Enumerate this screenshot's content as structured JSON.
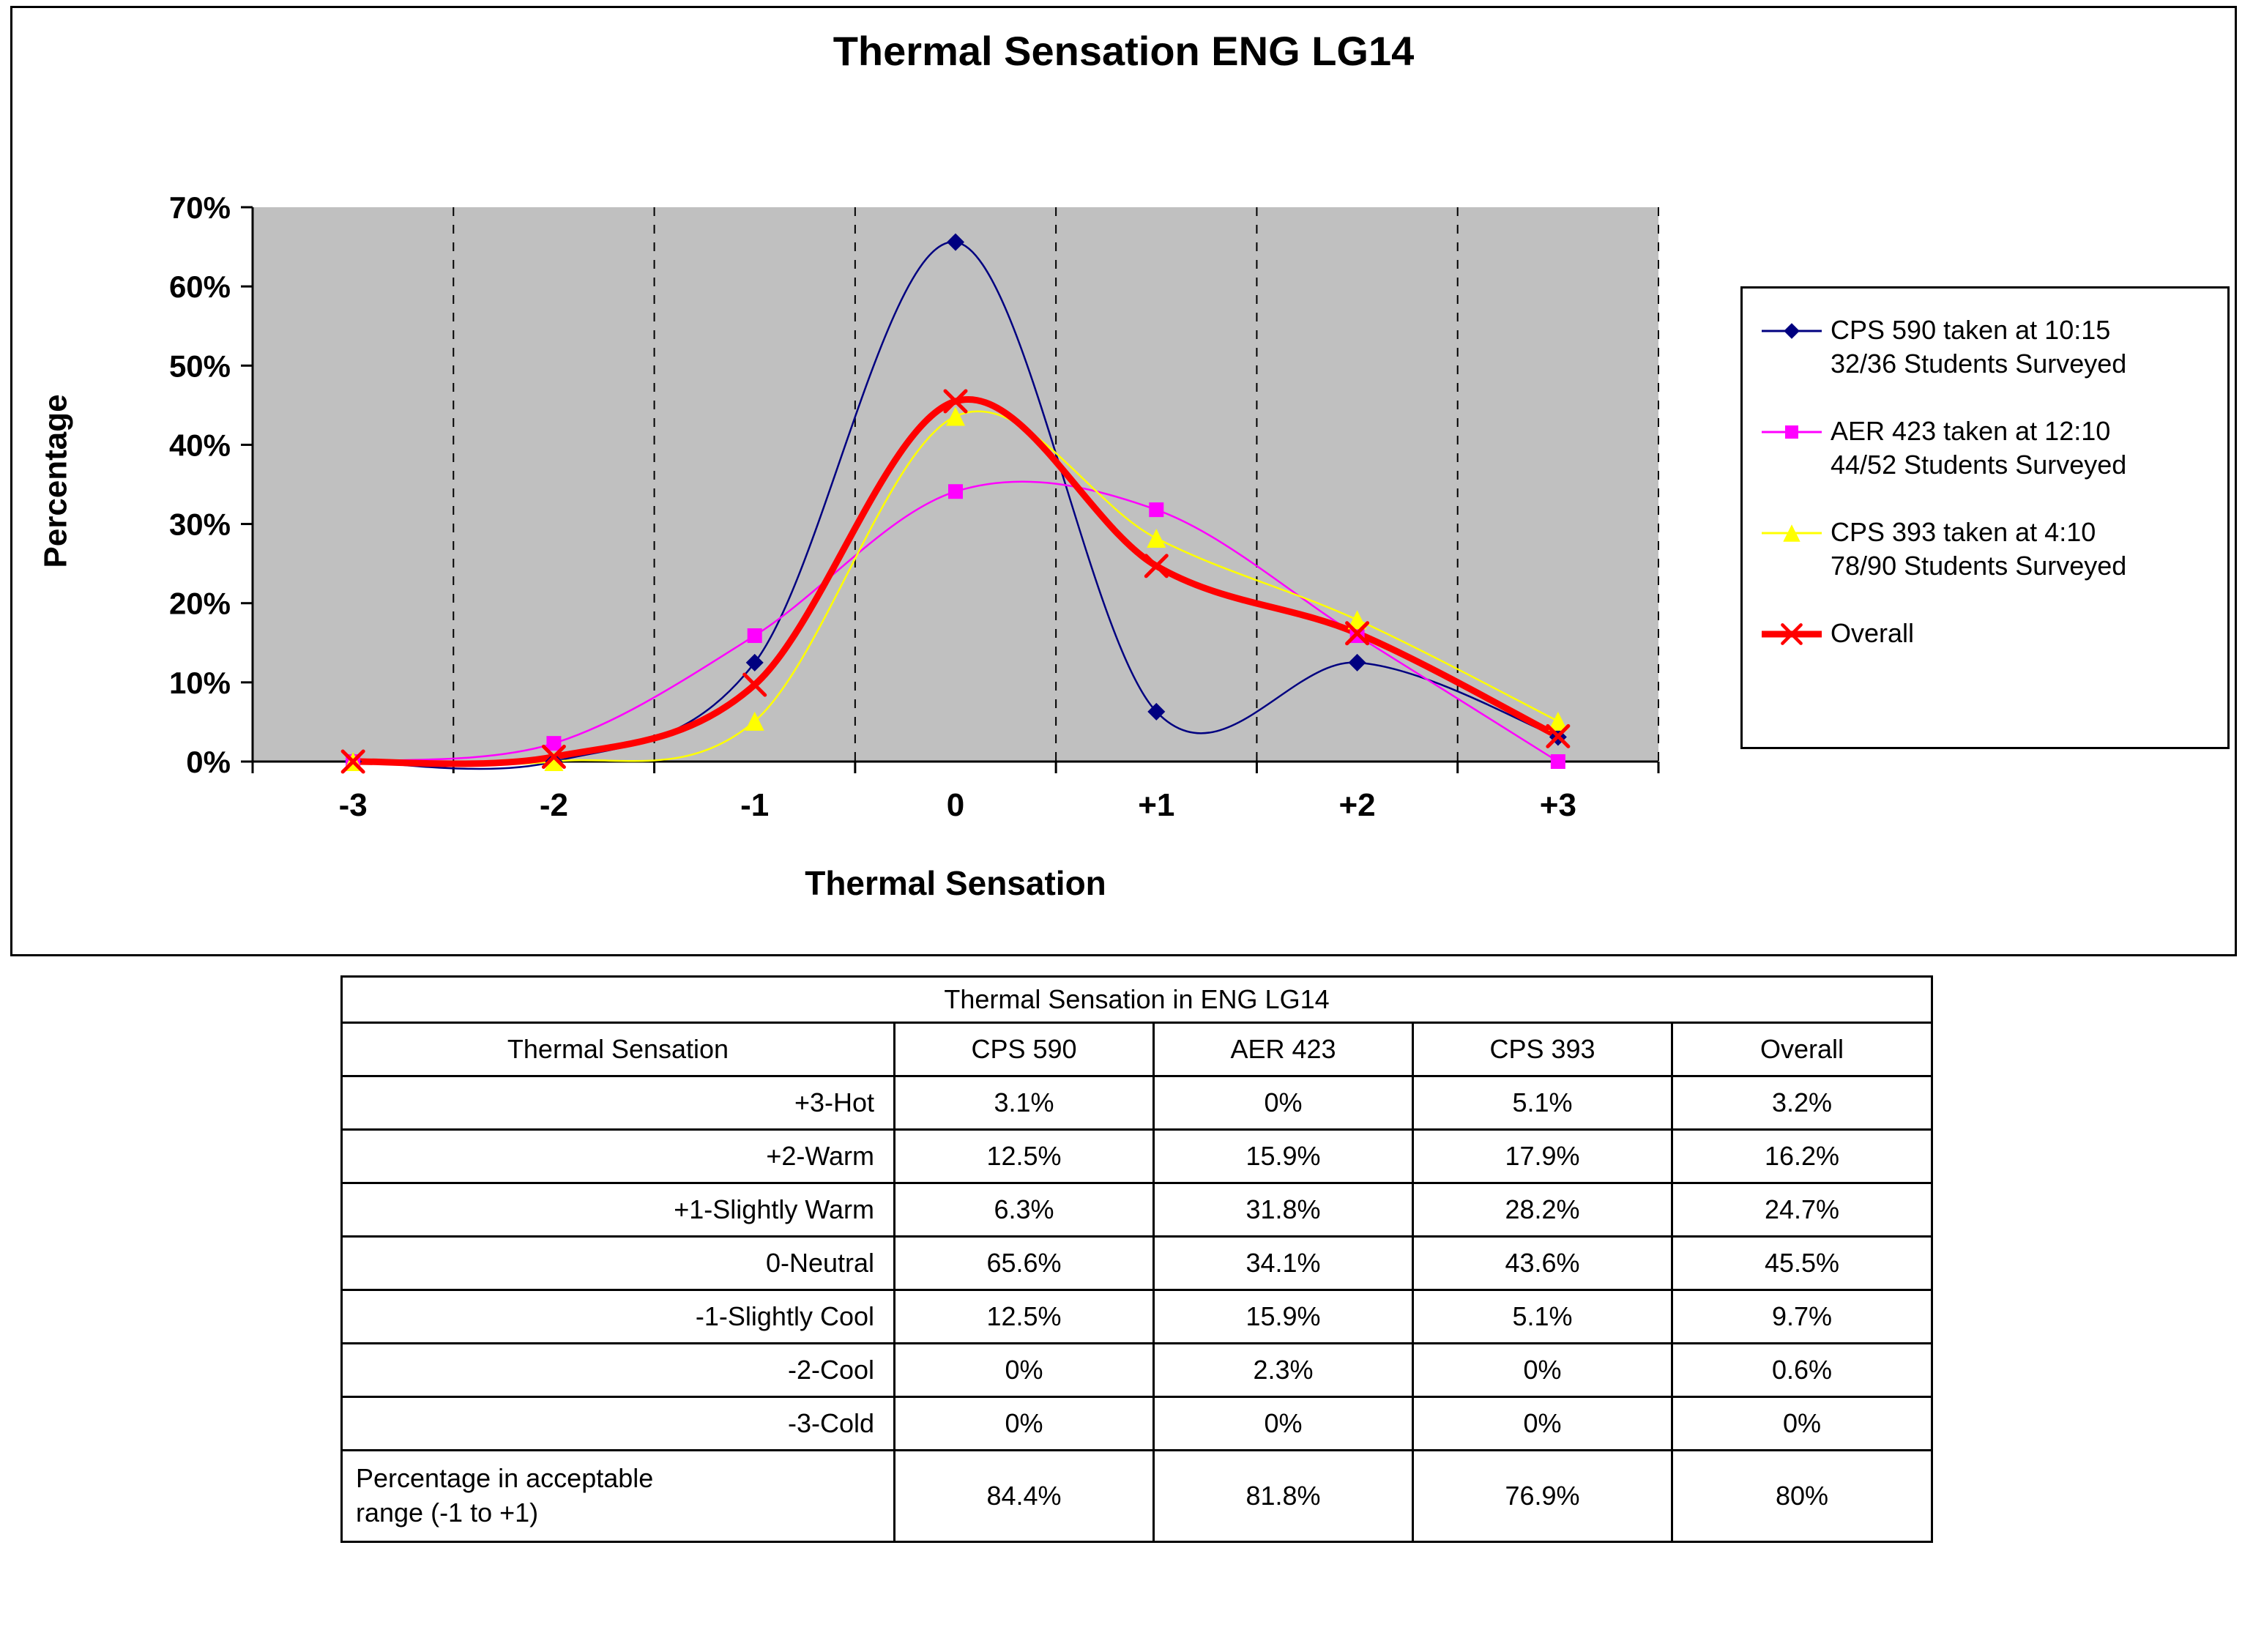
{
  "chart_data": {
    "type": "line",
    "title": "Thermal Sensation ENG LG14",
    "xlabel": "Thermal Sensation",
    "ylabel": "Percentage",
    "categories": [
      "-3",
      "-2",
      "-1",
      "0",
      "+1",
      "+2",
      "+3"
    ],
    "ylim": [
      0,
      70
    ],
    "ytick_step": 10,
    "ytick_labels": [
      "0%",
      "10%",
      "20%",
      "30%",
      "40%",
      "50%",
      "60%",
      "70%"
    ],
    "grid": "vertical-dashed",
    "legend_position": "right",
    "plot_background": "#c0c0c0",
    "line_style": "smooth",
    "series": [
      {
        "name": "CPS 590 taken at 10:15 32/36 Students Surveyed",
        "legend_line1": "CPS 590 taken at 10:15",
        "legend_line2": "32/36 Students Surveyed",
        "color": "#000080",
        "marker": "diamond",
        "line_width": 2.5,
        "values": [
          0,
          0,
          12.5,
          65.6,
          6.3,
          12.5,
          3.1
        ]
      },
      {
        "name": "AER 423 taken at 12:10 44/52 Students Surveyed",
        "legend_line1": "AER 423 taken at 12:10",
        "legend_line2": "44/52 Students Surveyed",
        "color": "#ff00ff",
        "marker": "square",
        "line_width": 2.5,
        "values": [
          0,
          2.3,
          15.9,
          34.1,
          31.8,
          15.9,
          0
        ]
      },
      {
        "name": "CPS 393 taken at 4:10 78/90 Students Surveyed",
        "legend_line1": "CPS 393 taken at 4:10",
        "legend_line2": "78/90 Students Surveyed",
        "color": "#ffff00",
        "marker": "triangle",
        "line_width": 2.5,
        "values": [
          0,
          0,
          5.1,
          43.6,
          28.2,
          17.9,
          5.1
        ]
      },
      {
        "name": "Overall",
        "legend_line1": "Overall",
        "legend_line2": "",
        "color": "#ff0000",
        "marker": "x",
        "line_width": 9,
        "values": [
          0,
          0.6,
          9.7,
          45.5,
          24.7,
          16.2,
          3.2
        ]
      }
    ]
  },
  "table": {
    "title": "Thermal Sensation in ENG LG14",
    "headers": [
      "Thermal Sensation",
      "CPS 590",
      "AER 423",
      "CPS 393",
      "Overall"
    ],
    "rows": [
      {
        "label": "+3-Hot",
        "values": [
          "3.1%",
          "0%",
          "5.1%",
          "3.2%"
        ]
      },
      {
        "label": "+2-Warm",
        "values": [
          "12.5%",
          "15.9%",
          "17.9%",
          "16.2%"
        ]
      },
      {
        "label": "+1-Slightly Warm",
        "values": [
          "6.3%",
          "31.8%",
          "28.2%",
          "24.7%"
        ]
      },
      {
        "label": "0-Neutral",
        "values": [
          "65.6%",
          "34.1%",
          "43.6%",
          "45.5%"
        ]
      },
      {
        "label": "-1-Slightly Cool",
        "values": [
          "12.5%",
          "15.9%",
          "5.1%",
          "9.7%"
        ]
      },
      {
        "label": "-2-Cool",
        "values": [
          "0%",
          "2.3%",
          "0%",
          "0.6%"
        ]
      },
      {
        "label": "-3-Cold",
        "values": [
          "0%",
          "0%",
          "0%",
          "0%"
        ]
      },
      {
        "label": "Percentage in acceptable range (-1 to +1)",
        "values": [
          "84.4%",
          "81.8%",
          "76.9%",
          "80%"
        ]
      }
    ]
  }
}
